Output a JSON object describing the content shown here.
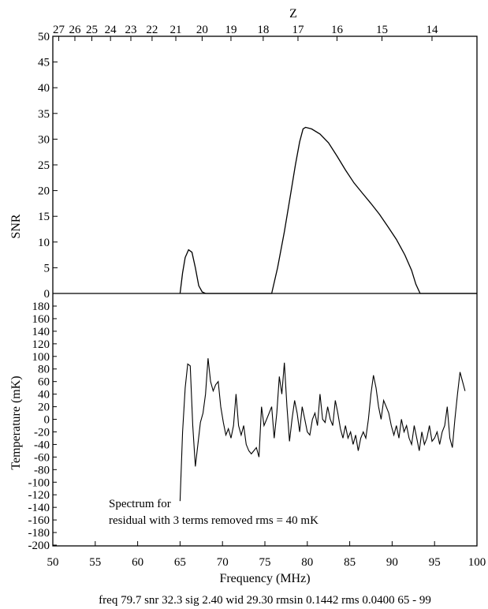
{
  "chart_data": [
    {
      "type": "line",
      "panel": "top",
      "top_axis_label": "Z",
      "top_ticks": [
        {
          "label": "27",
          "freq": 50.7
        },
        {
          "label": "26",
          "freq": 52.6
        },
        {
          "label": "25",
          "freq": 54.6
        },
        {
          "label": "24",
          "freq": 56.8
        },
        {
          "label": "23",
          "freq": 59.2
        },
        {
          "label": "22",
          "freq": 61.7
        },
        {
          "label": "21",
          "freq": 64.5
        },
        {
          "label": "20",
          "freq": 67.6
        },
        {
          "label": "19",
          "freq": 71.0
        },
        {
          "label": "18",
          "freq": 74.8
        },
        {
          "label": "17",
          "freq": 78.9
        },
        {
          "label": "16",
          "freq": 83.5
        },
        {
          "label": "15",
          "freq": 88.8
        },
        {
          "label": "14",
          "freq": 94.7
        }
      ],
      "ylabel": "SNR",
      "ylim": [
        0,
        50
      ],
      "yticks": [
        0,
        5,
        10,
        15,
        20,
        25,
        30,
        35,
        40,
        45,
        50
      ],
      "xlim": [
        50,
        100
      ],
      "series": [
        {
          "points": [
            [
              65,
              0
            ],
            [
              65.3,
              4
            ],
            [
              65.6,
              7
            ],
            [
              66.0,
              8.5
            ],
            [
              66.4,
              8
            ],
            [
              66.8,
              5
            ],
            [
              67.2,
              1.5
            ],
            [
              67.6,
              0.3
            ],
            [
              68.0,
              0
            ],
            [
              75.8,
              0
            ],
            [
              76.5,
              5
            ],
            [
              77.3,
              12
            ],
            [
              78.0,
              19
            ],
            [
              78.6,
              25
            ],
            [
              79.1,
              29.5
            ],
            [
              79.5,
              32.0
            ],
            [
              79.8,
              32.3
            ],
            [
              80.5,
              32.0
            ],
            [
              81.5,
              31.0
            ],
            [
              82.5,
              29.3
            ],
            [
              83.5,
              26.7
            ],
            [
              84.5,
              24.0
            ],
            [
              85.5,
              21.5
            ],
            [
              86.5,
              19.5
            ],
            [
              87.5,
              17.5
            ],
            [
              88.5,
              15.4
            ],
            [
              89.5,
              13.0
            ],
            [
              90.5,
              10.5
            ],
            [
              91.5,
              7.5
            ],
            [
              92.3,
              4.5
            ],
            [
              92.8,
              1.8
            ],
            [
              93.3,
              0
            ],
            [
              100,
              0
            ]
          ]
        }
      ]
    },
    {
      "type": "line",
      "panel": "bottom",
      "xlabel": "Frequency (MHz)",
      "ylabel": "Temperature (mK)",
      "xlim": [
        50,
        100
      ],
      "xticks": [
        50,
        55,
        60,
        65,
        70,
        75,
        80,
        85,
        90,
        95,
        100
      ],
      "ylim": [
        -200,
        180
      ],
      "yticks": [
        180,
        160,
        140,
        120,
        100,
        80,
        60,
        40,
        20,
        0,
        -20,
        -40,
        -60,
        -80,
        -100,
        -120,
        -140,
        -160,
        -180,
        -200
      ],
      "series": [
        {
          "points": [
            [
              65.0,
              -130
            ],
            [
              65.3,
              -20
            ],
            [
              65.6,
              50
            ],
            [
              65.9,
              88
            ],
            [
              66.2,
              85
            ],
            [
              66.5,
              -10
            ],
            [
              66.8,
              -75
            ],
            [
              67.1,
              -40
            ],
            [
              67.4,
              -5
            ],
            [
              67.7,
              10
            ],
            [
              68.0,
              40
            ],
            [
              68.3,
              97
            ],
            [
              68.6,
              60
            ],
            [
              68.9,
              45
            ],
            [
              69.2,
              55
            ],
            [
              69.5,
              60
            ],
            [
              69.8,
              20
            ],
            [
              70.1,
              -5
            ],
            [
              70.4,
              -25
            ],
            [
              70.7,
              -15
            ],
            [
              71.0,
              -30
            ],
            [
              71.3,
              -10
            ],
            [
              71.6,
              40
            ],
            [
              71.9,
              -10
            ],
            [
              72.2,
              -25
            ],
            [
              72.5,
              -10
            ],
            [
              72.8,
              -40
            ],
            [
              73.1,
              -50
            ],
            [
              73.4,
              -55
            ],
            [
              73.7,
              -50
            ],
            [
              74.0,
              -45
            ],
            [
              74.3,
              -60
            ],
            [
              74.6,
              20
            ],
            [
              74.9,
              -10
            ],
            [
              75.2,
              0
            ],
            [
              75.5,
              10
            ],
            [
              75.8,
              20
            ],
            [
              76.1,
              -30
            ],
            [
              76.4,
              10
            ],
            [
              76.7,
              68
            ],
            [
              77.0,
              40
            ],
            [
              77.3,
              90
            ],
            [
              77.6,
              20
            ],
            [
              77.9,
              -35
            ],
            [
              78.2,
              0
            ],
            [
              78.5,
              30
            ],
            [
              78.8,
              10
            ],
            [
              79.1,
              -20
            ],
            [
              79.4,
              20
            ],
            [
              79.7,
              0
            ],
            [
              80.0,
              -20
            ],
            [
              80.3,
              -25
            ],
            [
              80.6,
              0
            ],
            [
              80.9,
              10
            ],
            [
              81.2,
              -10
            ],
            [
              81.5,
              40
            ],
            [
              81.8,
              0
            ],
            [
              82.1,
              -5
            ],
            [
              82.4,
              20
            ],
            [
              82.7,
              0
            ],
            [
              83.0,
              -10
            ],
            [
              83.3,
              30
            ],
            [
              83.6,
              10
            ],
            [
              83.9,
              -15
            ],
            [
              84.2,
              -30
            ],
            [
              84.5,
              -10
            ],
            [
              84.8,
              -30
            ],
            [
              85.1,
              -20
            ],
            [
              85.4,
              -40
            ],
            [
              85.7,
              -25
            ],
            [
              86.0,
              -50
            ],
            [
              86.3,
              -30
            ],
            [
              86.6,
              -20
            ],
            [
              86.9,
              -30
            ],
            [
              87.2,
              0
            ],
            [
              87.5,
              40
            ],
            [
              87.8,
              70
            ],
            [
              88.1,
              50
            ],
            [
              88.4,
              20
            ],
            [
              88.7,
              0
            ],
            [
              89.0,
              30
            ],
            [
              89.3,
              20
            ],
            [
              89.6,
              10
            ],
            [
              89.9,
              -10
            ],
            [
              90.2,
              -25
            ],
            [
              90.5,
              -10
            ],
            [
              90.8,
              -30
            ],
            [
              91.1,
              0
            ],
            [
              91.4,
              -20
            ],
            [
              91.7,
              -10
            ],
            [
              92.0,
              -30
            ],
            [
              92.3,
              -40
            ],
            [
              92.6,
              -10
            ],
            [
              92.9,
              -30
            ],
            [
              93.2,
              -50
            ],
            [
              93.5,
              -20
            ],
            [
              93.8,
              -40
            ],
            [
              94.1,
              -30
            ],
            [
              94.4,
              -10
            ],
            [
              94.7,
              -35
            ],
            [
              95.0,
              -30
            ],
            [
              95.3,
              -20
            ],
            [
              95.6,
              -40
            ],
            [
              95.9,
              -20
            ],
            [
              96.2,
              -10
            ],
            [
              96.5,
              20
            ],
            [
              96.8,
              -30
            ],
            [
              97.1,
              -45
            ],
            [
              97.4,
              0
            ],
            [
              97.7,
              40
            ],
            [
              98.0,
              75
            ],
            [
              98.3,
              60
            ],
            [
              98.6,
              45
            ]
          ]
        }
      ],
      "annotation": {
        "line1": "Spectrum for",
        "line2": "residual with 3 terms removed rms =  40 mK"
      }
    }
  ],
  "caption": "freq 79.7 snr 32.3 sig 2.40 wid 29.30 rmsin 0.1442 rms 0.0400 65 - 99"
}
